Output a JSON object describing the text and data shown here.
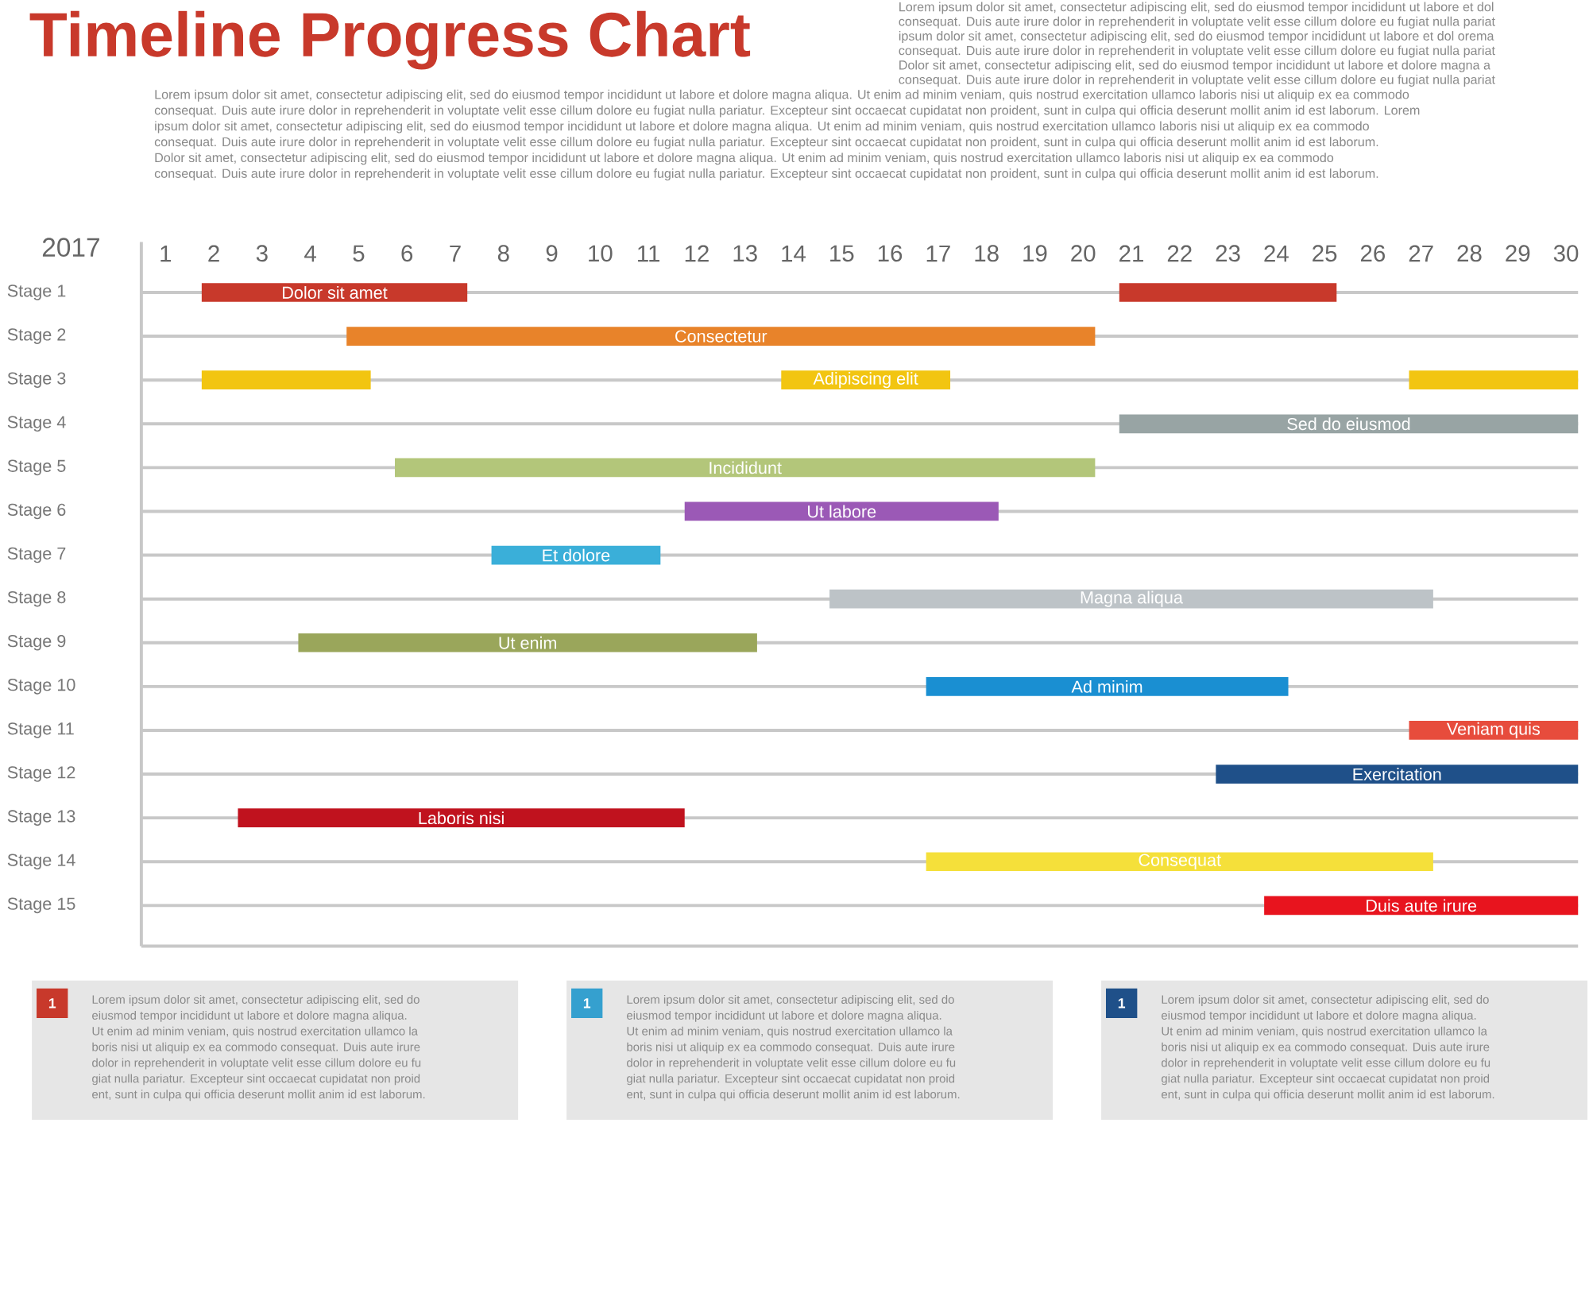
{
  "chart_data": {
    "type": "bar",
    "orientation": "horizontal",
    "title": "Timeline Progress Chart",
    "xlabel": "2017",
    "categories": [
      "Stage 1",
      "Stage 2",
      "Stage 3",
      "Stage 4",
      "Stage 5",
      "Stage 6",
      "Stage 7",
      "Stage 8",
      "Stage 9",
      "Stage 10",
      "Stage 11",
      "Stage 12",
      "Stage 13",
      "Stage 14",
      "Stage 15"
    ],
    "xlim": [
      0.5,
      30.25
    ],
    "xticks": [
      1,
      2,
      3,
      4,
      5,
      6,
      7,
      8,
      9,
      10,
      11,
      12,
      13,
      14,
      15,
      16,
      17,
      18,
      19,
      20,
      21,
      22,
      23,
      24,
      25,
      26,
      27,
      28,
      29,
      30
    ],
    "grid": "y",
    "series": [
      {
        "base": [
          1.75,
          4.75,
          1.75,
          20.75,
          5.75,
          11.75,
          7.75,
          14.75,
          3.75,
          16.75,
          26.75,
          22.75,
          2.5,
          16.75,
          23.75
        ],
        "values": [
          5.5,
          15.5,
          3.5,
          9.5,
          14.5,
          6.5,
          3.5,
          12.5,
          9.5,
          7.5,
          3.5,
          7.5,
          9.25,
          10.5,
          6.5
        ],
        "colors": [
          "#c8392b",
          "#e8832a",
          "#f2c511",
          "#98a4a4",
          "#b3c67a",
          "#9b59b6",
          "#3aafd9",
          "#bdc3c7",
          "#9aa65b",
          "#1a8fd2",
          "#e74c3c",
          "#1f5089",
          "#c0121e",
          "#f5e03a",
          "#e8141e"
        ],
        "value_labels": [
          "Dolor sit amet",
          "Consectetur",
          null,
          "Sed do eiusmod",
          "Incididunt",
          "Ut labore",
          "Et dolore",
          "Magna aliqua",
          "Ut enim",
          "Ad minim",
          "Veniam quis",
          "Exercitation",
          "Laboris nisi",
          "Consequat",
          "Duis aute irure"
        ]
      },
      {
        "base": [
          20.75,
          null,
          13.75,
          null,
          null,
          null,
          null,
          null,
          null,
          null,
          null,
          null,
          null,
          null,
          null
        ],
        "values": [
          4.5,
          null,
          3.5,
          null,
          null,
          null,
          null,
          null,
          null,
          null,
          null,
          null,
          null,
          null,
          null
        ],
        "colors": [
          "#c8392b",
          null,
          "#f2c511",
          null,
          null,
          null,
          null,
          null,
          null,
          null,
          null,
          null,
          null,
          null,
          null
        ],
        "value_labels": [
          null,
          null,
          "Adipiscing elit",
          null,
          null,
          null,
          null,
          null,
          null,
          null,
          null,
          null,
          null,
          null,
          null
        ]
      },
      {
        "base": [
          null,
          null,
          26.75,
          null,
          null,
          null,
          null,
          null,
          null,
          null,
          null,
          null,
          null,
          null,
          null
        ],
        "values": [
          null,
          null,
          3.5,
          null,
          null,
          null,
          null,
          null,
          null,
          null,
          null,
          null,
          null,
          null,
          null
        ],
        "colors": [
          null,
          null,
          "#f2c511",
          null,
          null,
          null,
          null,
          null,
          null,
          null,
          null,
          null,
          null,
          null,
          null
        ]
      }
    ],
    "annotations": [
      "Lorem ipsum dolor sit amet, consectetur adipiscing elit, sed do eiusmod tempor incididunt ut labore et dol",
      "consequat. Duis aute irure dolor in reprehenderit in voluptate velit esse cillum dolore eu fugiat nulla pariat",
      "ipsum dolor sit amet, consectetur adipiscing elit, sed do eiusmod tempor incididunt ut labore et dol orema",
      "consequat. Duis aute irure dolor in reprehenderit in voluptate velit esse cillum dolore eu fugiat nulla pariat",
      "Dolor sit amet, consectetur adipiscing elit, sed do eiusmod tempor incididunt ut labore et dolore magna a",
      "consequat. Duis aute irure dolor in reprehenderit in voluptate velit esse cillum dolore eu fugiat nulla pariat",
      "Lorem ipsum dolor sit amet, consectetur adipiscing elit, sed do eiusmod tempor incididunt ut labore et dolore magna aliqua. Ut enim ad minim veniam, quis nostrud exercitation ullamco laboris nisi ut aliquip ex ea commodo",
      "consequat. Duis aute irure dolor in reprehenderit in voluptate velit esse cillum dolore eu fugiat nulla pariatur. Excepteur sint occaecat cupidatat non proident, sunt in culpa qui officia deserunt mollit anim id est laborum. Lorem",
      "ipsum dolor sit amet, consectetur adipiscing elit, sed do eiusmod tempor incididunt ut labore et dolore magna aliqua. Ut enim ad minim veniam, quis nostrud exercitation ullamco laboris nisi ut aliquip ex ea commodo",
      "consequat. Duis aute irure dolor in reprehenderit in voluptate velit esse cillum dolore eu fugiat nulla pariatur. Excepteur sint occaecat cupidatat non proident, sunt in culpa qui officia deserunt mollit anim id est laborum.",
      "Dolor sit amet, consectetur adipiscing elit, sed do eiusmod tempor incididunt ut labore et dolore magna aliqua. Ut enim ad minim veniam, quis nostrud exercitation ullamco laboris nisi ut aliquip ex ea commodo",
      "consequat. Duis aute irure dolor in reprehenderit in voluptate velit esse cillum dolore eu fugiat nulla pariatur. Excepteur sint occaecat cupidatat non proident, sunt in culpa qui officia deserunt mollit anim id est laborum.",
      "1",
      "Lorem ipsum dolor sit amet, consectetur adipiscing elit, sed do",
      "eiusmod tempor incididunt ut labore et dolore magna aliqua.",
      "Ut enim ad minim veniam, quis nostrud exercitation ullamco la",
      "boris nisi ut aliquip ex ea commodo consequat. Duis aute irure",
      "dolor in reprehenderit in voluptate velit esse cillum dolore eu fu",
      "giat nulla pariatur. Excepteur sint occaecat cupidatat non proid",
      "ent, sunt in culpa qui officia deserunt mollit anim id est laborum.",
      "1",
      "Lorem ipsum dolor sit amet, consectetur adipiscing elit, sed do",
      "eiusmod tempor incididunt ut labore et dolore magna aliqua.",
      "Ut enim ad minim veniam, quis nostrud exercitation ullamco la",
      "boris nisi ut aliquip ex ea commodo consequat. Duis aute irure",
      "dolor in reprehenderit in voluptate velit esse cillum dolore eu fu",
      "giat nulla pariatur. Excepteur sint occaecat cupidatat non proid",
      "ent, sunt in culpa qui officia deserunt mollit anim id est laborum.",
      "1",
      "Lorem ipsum dolor sit amet, consectetur adipiscing elit, sed do",
      "eiusmod tempor incididunt ut labore et dolore magna aliqua.",
      "Ut enim ad minim veniam, quis nostrud exercitation ullamco la",
      "boris nisi ut aliquip ex ea commodo consequat. Duis aute irure",
      "dolor in reprehenderit in voluptate velit esse cillum dolore eu fu",
      "giat nulla pariatur. Excepteur sint occaecat cupidatat non proid",
      "ent, sunt in culpa qui officia deserunt mollit anim id est laborum."
    ]
  }
}
